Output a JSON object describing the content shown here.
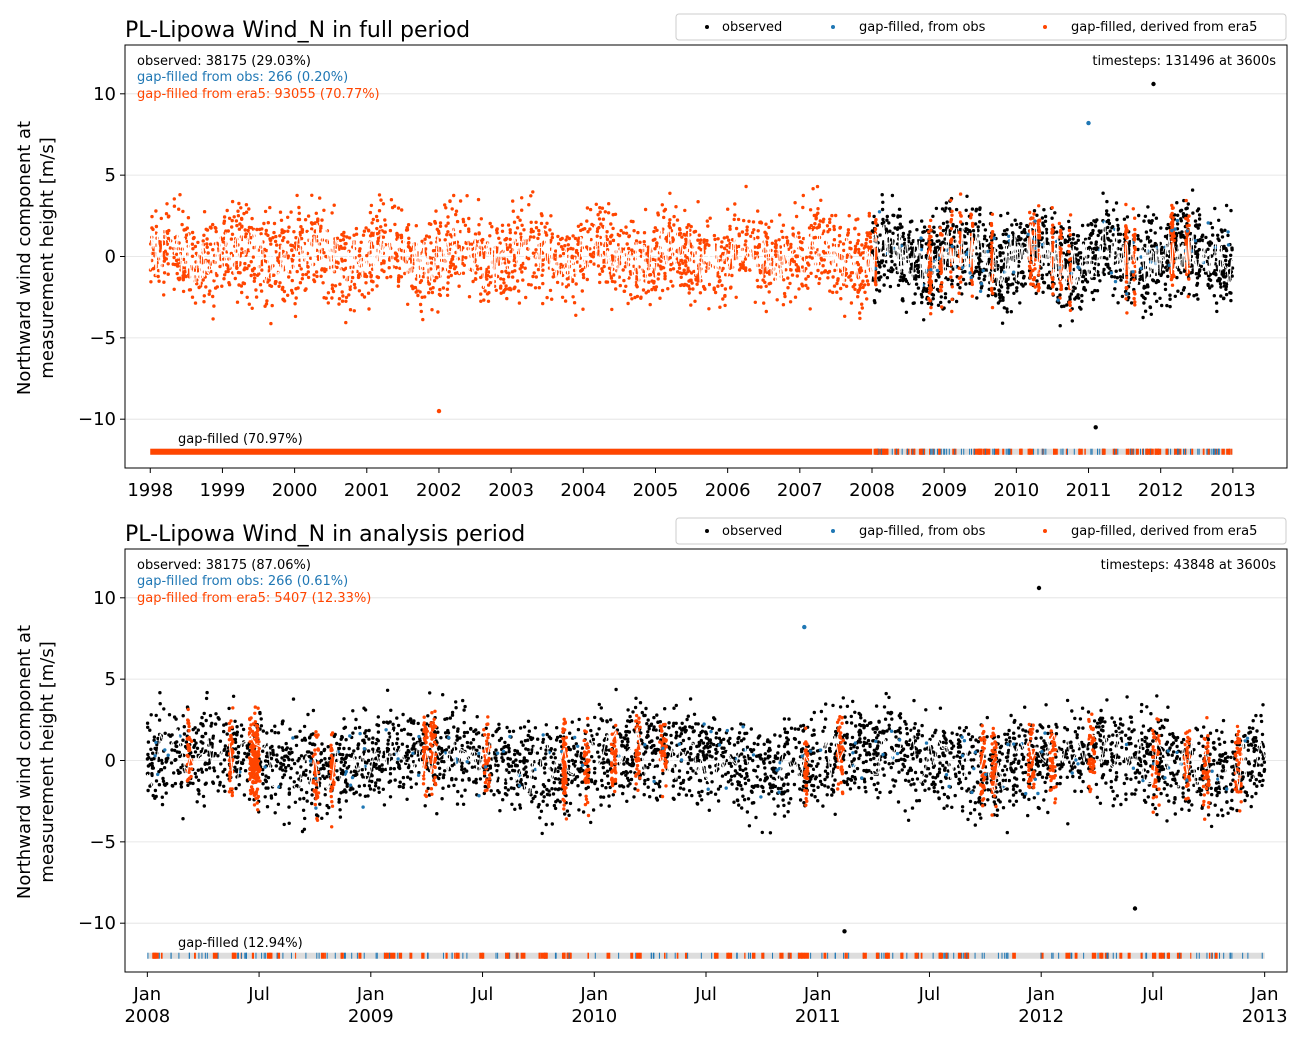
{
  "colors": {
    "observed": "#000000",
    "gapfilled_obs": "#1f77b4",
    "gapfilled_era5": "#ff4500",
    "running_mean": "#ffffff",
    "grid": "#e0e0e0",
    "coverage_bg": "#dddddd"
  },
  "legend": {
    "observed": "observed",
    "gapfilled_obs": "gap-filled, from obs",
    "gapfilled_era5": "gap-filled, derived from era5"
  },
  "ylabel_line1": "Northward wind component at",
  "ylabel_line2": "measurement height [m/s]",
  "chart_data": [
    {
      "type": "scatter",
      "title": "PL-Lipowa Wind_N in full period",
      "xlabel": "",
      "ylabel": "Northward wind component at measurement height [m/s]",
      "xlim": [
        1997.65,
        2013.75
      ],
      "ylim": [
        -13,
        13
      ],
      "yticks": [
        -10,
        -5,
        0,
        5,
        10
      ],
      "ytick_labels": [
        "−10",
        "−5",
        "0",
        "5",
        "10"
      ],
      "xticks": [
        1998,
        1999,
        2000,
        2001,
        2002,
        2003,
        2004,
        2005,
        2006,
        2007,
        2008,
        2009,
        2010,
        2011,
        2012,
        2013
      ],
      "xtick_labels": [
        [
          "1998"
        ],
        [
          "1999"
        ],
        [
          "2000"
        ],
        [
          "2001"
        ],
        [
          "2002"
        ],
        [
          "2003"
        ],
        [
          "2004"
        ],
        [
          "2005"
        ],
        [
          "2006"
        ],
        [
          "2007"
        ],
        [
          "2008"
        ],
        [
          "2009"
        ],
        [
          "2010"
        ],
        [
          "2011"
        ],
        [
          "2012"
        ],
        [
          "2013"
        ]
      ],
      "grid": "horizontal",
      "legend_placement": "top-right",
      "stats": {
        "observed": "observed: 38175 (29.03%)",
        "gapfilled_obs": "gap-filled from obs: 266 (0.20%)",
        "gapfilled_era5": "gap-filled from era5: 93055 (70.77%)",
        "timesteps": "timesteps: 131496 at 3600s"
      },
      "coverage_label": "gap-filled (70.97%)",
      "segments": [
        {
          "series": "gapfilled_era5",
          "from": 1998.0,
          "to": 2008.0
        },
        {
          "series": "observed_mixed",
          "from": 2008.0,
          "to": 2013.0
        }
      ],
      "data_range": {
        "x_min": 1998.0,
        "x_max": 2013.0,
        "y_min": -10.5,
        "y_max": 10.6
      },
      "notable_points": [
        {
          "series": "observed",
          "x": 2011.9,
          "y": 10.6
        },
        {
          "series": "gapfilled_obs",
          "x": 2011.0,
          "y": 8.2
        },
        {
          "series": "gapfilled_era5",
          "x": 2002.0,
          "y": -9.5
        },
        {
          "series": "observed",
          "x": 2011.1,
          "y": -10.5
        }
      ]
    },
    {
      "type": "scatter",
      "title": "PL-Lipowa Wind_N in analysis period",
      "xlabel": "",
      "ylabel": "Northward wind component at measurement height [m/s]",
      "xlim": [
        2007.9,
        2013.1
      ],
      "ylim": [
        -13,
        13
      ],
      "yticks": [
        -10,
        -5,
        0,
        5,
        10
      ],
      "ytick_labels": [
        "−10",
        "−5",
        "0",
        "5",
        "10"
      ],
      "xticks": [
        2008.0,
        2008.5,
        2009.0,
        2009.5,
        2010.0,
        2010.5,
        2011.0,
        2011.5,
        2012.0,
        2012.5,
        2013.0
      ],
      "xtick_labels": [
        [
          "Jan",
          "2008"
        ],
        [
          "Jul"
        ],
        [
          "Jan",
          "2009"
        ],
        [
          "Jul"
        ],
        [
          "Jan",
          "2010"
        ],
        [
          "Jul"
        ],
        [
          "Jan",
          "2011"
        ],
        [
          "Jul"
        ],
        [
          "Jan",
          "2012"
        ],
        [
          "Jul"
        ],
        [
          "Jan",
          "2013"
        ]
      ],
      "grid": "horizontal",
      "legend_placement": "top-right",
      "stats": {
        "observed": "observed: 38175 (87.06%)",
        "gapfilled_obs": "gap-filled from obs: 266 (0.61%)",
        "gapfilled_era5": "gap-filled from era5: 5407 (12.33%)",
        "timesteps": "timesteps: 43848 at 3600s"
      },
      "coverage_label": "gap-filled (12.94%)",
      "segments": [
        {
          "series": "observed_mixed",
          "from": 2008.0,
          "to": 2013.0
        }
      ],
      "data_range": {
        "x_min": 2008.0,
        "x_max": 2013.0,
        "y_min": -10.5,
        "y_max": 10.6
      },
      "notable_points": [
        {
          "series": "observed",
          "x": 2011.99,
          "y": 10.6
        },
        {
          "series": "gapfilled_obs",
          "x": 2010.94,
          "y": 8.2
        },
        {
          "series": "observed",
          "x": 2011.12,
          "y": -10.5
        },
        {
          "series": "observed",
          "x": 2012.42,
          "y": -9.1
        }
      ]
    }
  ]
}
